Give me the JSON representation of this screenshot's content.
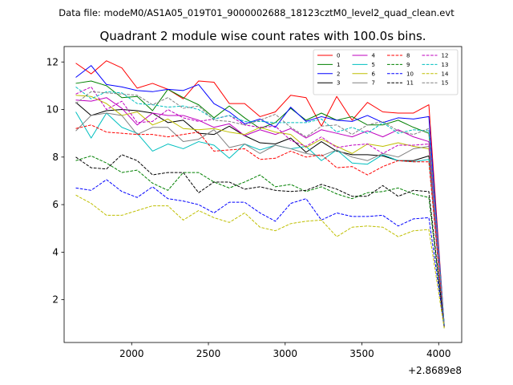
{
  "chart_data": {
    "type": "line",
    "suptitle": "Data file: modeM0/AS1A05_019T01_9000002688_18123cztM0_level2_quad_clean.evt",
    "title": "Quadrant 2 module wise count rates with 100.0s bins.",
    "xlabel": "",
    "ylabel": "",
    "x_offset_label": "+2.8689e8",
    "xlim": [
      1560,
      4150
    ],
    "ylim": [
      0.2,
      12.65
    ],
    "x_ticks": [
      2000,
      2500,
      3000,
      3500,
      4000
    ],
    "x_tick_labels": [
      "2000",
      "2500",
      "3000",
      "3500",
      "4000"
    ],
    "y_ticks": [
      2,
      4,
      6,
      8,
      10,
      12
    ],
    "y_tick_labels": [
      "2",
      "4",
      "6",
      "8",
      "10",
      "12"
    ],
    "legend_location": "upper right",
    "legend_columns": 4,
    "x": [
      1636,
      1736,
      1836,
      1936,
      2036,
      2136,
      2236,
      2336,
      2436,
      2536,
      2636,
      2736,
      2836,
      2936,
      3036,
      3136,
      3236,
      3336,
      3436,
      3536,
      3636,
      3736,
      3836,
      3936,
      4036
    ],
    "series": [
      {
        "name": "0",
        "color": "#ff0000",
        "dash": "solid",
        "values": [
          11.95,
          11.5,
          12.05,
          11.75,
          10.9,
          11.1,
          10.85,
          10.45,
          11.2,
          11.15,
          10.25,
          10.25,
          9.7,
          9.9,
          10.6,
          10.5,
          9.3,
          10.55,
          9.55,
          10.3,
          9.9,
          9.85,
          9.85,
          10.2,
          0.9
        ]
      },
      {
        "name": "1",
        "color": "#008000",
        "dash": "solid",
        "values": [
          11.1,
          11.2,
          11.0,
          10.5,
          10.55,
          9.95,
          10.85,
          10.5,
          10.2,
          9.65,
          10.15,
          9.65,
          9.2,
          9.45,
          10.05,
          9.55,
          9.85,
          9.55,
          9.7,
          9.35,
          9.35,
          9.55,
          9.25,
          9.0,
          0.9
        ]
      },
      {
        "name": "2",
        "color": "#0000ff",
        "dash": "solid",
        "values": [
          11.35,
          11.85,
          11.05,
          10.95,
          10.8,
          10.75,
          10.85,
          10.8,
          11.05,
          10.25,
          9.9,
          9.4,
          9.6,
          9.25,
          10.1,
          9.5,
          9.7,
          9.55,
          9.5,
          9.75,
          9.45,
          9.65,
          9.6,
          9.7,
          0.95
        ]
      },
      {
        "name": "3",
        "color": "#000000",
        "dash": "solid",
        "values": [
          10.3,
          9.75,
          9.95,
          10.0,
          9.95,
          9.85,
          9.45,
          9.55,
          9.0,
          8.95,
          9.3,
          8.9,
          8.6,
          8.55,
          8.8,
          8.2,
          8.65,
          8.25,
          8.1,
          8.1,
          8.05,
          7.85,
          7.85,
          8.05,
          0.85
        ]
      },
      {
        "name": "4",
        "color": "#bf00bf",
        "dash": "solid",
        "values": [
          10.4,
          10.35,
          10.5,
          10.05,
          9.35,
          9.85,
          9.75,
          9.75,
          9.55,
          9.25,
          9.4,
          8.9,
          9.15,
          8.95,
          9.2,
          8.8,
          9.15,
          9.0,
          8.85,
          9.1,
          8.85,
          9.15,
          8.85,
          8.65,
          0.95
        ]
      },
      {
        "name": "5",
        "color": "#00bfbf",
        "dash": "solid",
        "values": [
          9.9,
          8.8,
          9.85,
          9.25,
          9.0,
          8.25,
          8.55,
          8.35,
          8.65,
          8.5,
          7.95,
          8.55,
          8.3,
          8.5,
          8.35,
          8.45,
          7.85,
          8.3,
          7.75,
          7.7,
          8.1,
          7.85,
          7.8,
          7.9,
          0.85
        ]
      },
      {
        "name": "6",
        "color": "#bfbf00",
        "dash": "solid",
        "values": [
          10.6,
          10.55,
          10.25,
          9.75,
          9.9,
          9.35,
          9.6,
          9.2,
          9.15,
          9.2,
          9.05,
          8.95,
          9.25,
          9.05,
          8.95,
          8.4,
          8.75,
          8.45,
          8.15,
          8.55,
          8.45,
          8.6,
          8.45,
          8.35,
          0.9
        ]
      },
      {
        "name": "7",
        "color": "#808080",
        "dash": "solid",
        "values": [
          9.1,
          9.75,
          9.85,
          9.75,
          8.95,
          9.25,
          9.25,
          8.65,
          8.75,
          9.15,
          8.4,
          8.55,
          8.15,
          8.5,
          8.35,
          8.15,
          8.05,
          8.3,
          8.0,
          7.85,
          8.15,
          8.0,
          8.35,
          8.45,
          0.85
        ]
      },
      {
        "name": "8",
        "color": "#ff0000",
        "dash": "dashed",
        "values": [
          9.2,
          9.35,
          9.05,
          9.0,
          8.95,
          8.95,
          8.85,
          8.95,
          9.05,
          8.25,
          8.3,
          8.35,
          7.9,
          7.95,
          8.25,
          8.0,
          8.1,
          7.55,
          7.6,
          7.25,
          7.6,
          7.85,
          7.8,
          7.8,
          0.9
        ]
      },
      {
        "name": "9",
        "color": "#008000",
        "dash": "dashed",
        "values": [
          7.85,
          8.05,
          7.75,
          7.35,
          7.45,
          6.9,
          6.6,
          7.35,
          7.35,
          6.95,
          6.7,
          6.95,
          7.25,
          6.75,
          6.85,
          6.55,
          6.75,
          6.45,
          6.25,
          6.5,
          6.55,
          6.7,
          6.45,
          6.3,
          0.8
        ]
      },
      {
        "name": "10",
        "color": "#0000ff",
        "dash": "dashed",
        "values": [
          6.7,
          6.6,
          7.05,
          6.55,
          6.3,
          6.75,
          6.25,
          6.15,
          6.0,
          5.65,
          6.1,
          6.1,
          5.65,
          5.3,
          6.05,
          6.25,
          5.35,
          5.65,
          5.5,
          5.5,
          5.55,
          5.1,
          5.4,
          5.45,
          0.9
        ]
      },
      {
        "name": "11",
        "color": "#000000",
        "dash": "dashed",
        "values": [
          8.0,
          7.55,
          7.5,
          8.1,
          7.85,
          7.25,
          7.35,
          7.35,
          6.5,
          6.95,
          6.95,
          6.65,
          6.75,
          6.6,
          6.55,
          6.6,
          6.85,
          6.65,
          6.35,
          6.35,
          6.8,
          6.35,
          6.6,
          6.55,
          0.85
        ]
      },
      {
        "name": "12",
        "color": "#bf00bf",
        "dash": "dashed",
        "values": [
          10.65,
          10.95,
          10.0,
          10.35,
          9.45,
          9.5,
          10.0,
          9.65,
          9.5,
          9.6,
          9.75,
          9.35,
          9.25,
          9.3,
          8.7,
          8.45,
          8.85,
          8.4,
          8.5,
          8.55,
          8.15,
          8.5,
          8.5,
          8.55,
          0.85
        ]
      },
      {
        "name": "13",
        "color": "#00bfbf",
        "dash": "dashed",
        "values": [
          10.95,
          10.45,
          10.75,
          10.7,
          10.25,
          10.2,
          10.1,
          10.15,
          10.0,
          9.6,
          9.75,
          9.5,
          9.5,
          9.45,
          9.45,
          9.45,
          9.6,
          9.05,
          9.25,
          9.0,
          9.45,
          9.0,
          9.15,
          9.1,
          0.95
        ]
      },
      {
        "name": "14",
        "color": "#bfbf00",
        "dash": "dashed",
        "values": [
          6.4,
          6.05,
          5.55,
          5.55,
          5.75,
          5.95,
          5.95,
          5.35,
          5.75,
          5.45,
          5.25,
          5.65,
          5.05,
          4.9,
          5.2,
          5.3,
          5.35,
          4.65,
          5.05,
          5.1,
          5.05,
          4.65,
          4.9,
          4.95,
          0.8
        ]
      },
      {
        "name": "15",
        "color": "#808080",
        "dash": "dashed",
        "values": [
          10.25,
          10.75,
          10.7,
          10.65,
          10.6,
          10.2,
          10.5,
          10.05,
          10.15,
          9.55,
          9.5,
          9.35,
          9.55,
          9.8,
          9.25,
          8.85,
          9.3,
          9.35,
          8.95,
          9.35,
          9.5,
          9.1,
          8.95,
          9.2,
          0.95
        ]
      }
    ]
  }
}
